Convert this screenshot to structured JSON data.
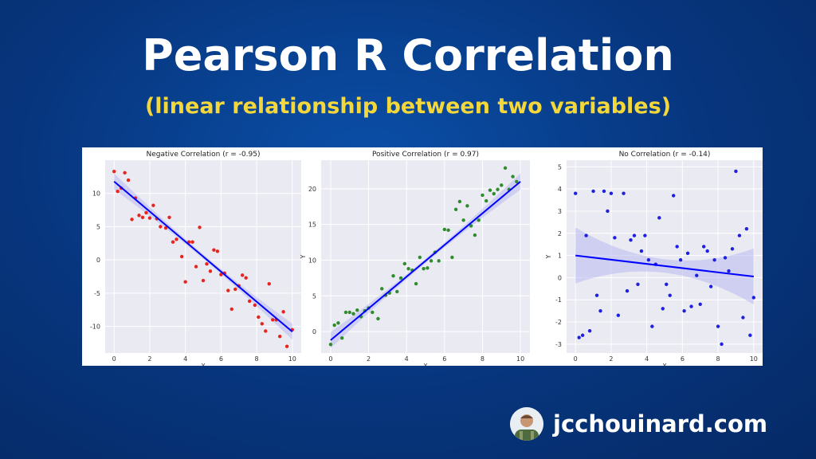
{
  "header": {
    "title": "Pearson R Correlation",
    "subtitle": "(linear relationship between two variables)"
  },
  "brand": {
    "site": "jcchouinard.com",
    "avatar_icon": "author-avatar-icon"
  },
  "colors": {
    "background": "#07357d",
    "title": "#ffffff",
    "subtitle": "#f4d73b",
    "plot_bg": "#eaeaf2",
    "fit_line": "#0000ff",
    "ci_band": "#b8b8f0"
  },
  "chart_data": [
    {
      "type": "scatter",
      "title": "Negative Correlation (r = -0.95)",
      "xlabel": "X",
      "ylabel": "",
      "xlim": [
        -0.5,
        10.5
      ],
      "ylim": [
        -14,
        15
      ],
      "xticks": [
        0,
        2,
        4,
        6,
        8,
        10
      ],
      "yticks": [
        -10,
        -5,
        0,
        5,
        10
      ],
      "grid": true,
      "point_color": "#e8241e",
      "fit": {
        "x0": 0,
        "y0": 11.8,
        "x1": 10,
        "y1": -10.8
      },
      "points": [
        [
          0,
          13.3
        ],
        [
          0.2,
          10.3
        ],
        [
          0.4,
          10.8
        ],
        [
          0.6,
          13.1
        ],
        [
          0.8,
          12.0
        ],
        [
          1.0,
          6.1
        ],
        [
          1.2,
          9.3
        ],
        [
          1.4,
          6.7
        ],
        [
          1.6,
          6.4
        ],
        [
          1.8,
          7.1
        ],
        [
          2.0,
          6.3
        ],
        [
          2.2,
          8.2
        ],
        [
          2.4,
          6.2
        ],
        [
          2.6,
          5.0
        ],
        [
          2.9,
          4.8
        ],
        [
          3.1,
          6.4
        ],
        [
          3.3,
          2.7
        ],
        [
          3.5,
          3.1
        ],
        [
          3.8,
          0.5
        ],
        [
          4.0,
          -3.3
        ],
        [
          4.2,
          2.7
        ],
        [
          4.4,
          2.7
        ],
        [
          4.6,
          -1.0
        ],
        [
          4.8,
          4.9
        ],
        [
          5.0,
          -3.1
        ],
        [
          5.2,
          -0.6
        ],
        [
          5.4,
          -1.7
        ],
        [
          5.6,
          1.5
        ],
        [
          5.8,
          1.3
        ],
        [
          6.0,
          -2.2
        ],
        [
          6.2,
          -2.0
        ],
        [
          6.4,
          -4.6
        ],
        [
          6.6,
          -7.4
        ],
        [
          6.8,
          -4.4
        ],
        [
          7.0,
          -3.9
        ],
        [
          7.2,
          -2.3
        ],
        [
          7.4,
          -2.7
        ],
        [
          7.6,
          -6.2
        ],
        [
          7.9,
          -6.8
        ],
        [
          8.1,
          -8.6
        ],
        [
          8.3,
          -9.6
        ],
        [
          8.5,
          -10.7
        ],
        [
          8.7,
          -3.6
        ],
        [
          8.9,
          -9.0
        ],
        [
          9.1,
          -9.0
        ],
        [
          9.3,
          -11.5
        ],
        [
          9.5,
          -7.8
        ],
        [
          9.7,
          -13.0
        ],
        [
          10.0,
          -10.5
        ]
      ]
    },
    {
      "type": "scatter",
      "title": "Positive Correlation (r = 0.97)",
      "xlabel": "X",
      "ylabel": "Y",
      "xlim": [
        -0.5,
        10.5
      ],
      "ylim": [
        -3,
        24
      ],
      "xticks": [
        0,
        2,
        4,
        6,
        8,
        10
      ],
      "yticks": [
        0,
        5,
        10,
        15,
        20
      ],
      "grid": true,
      "point_color": "#2e8b2e",
      "fit": {
        "x0": 0,
        "y0": -1.2,
        "x1": 10,
        "y1": 21.0
      },
      "points": [
        [
          0,
          -1.8
        ],
        [
          0.2,
          0.9
        ],
        [
          0.4,
          1.2
        ],
        [
          0.6,
          -0.9
        ],
        [
          0.8,
          2.7
        ],
        [
          1.0,
          2.7
        ],
        [
          1.2,
          2.5
        ],
        [
          1.4,
          3.0
        ],
        [
          1.6,
          2.1
        ],
        [
          1.8,
          2.9
        ],
        [
          2.0,
          3.3
        ],
        [
          2.2,
          2.7
        ],
        [
          2.5,
          1.8
        ],
        [
          2.7,
          6.0
        ],
        [
          2.9,
          5.1
        ],
        [
          3.1,
          5.4
        ],
        [
          3.3,
          7.8
        ],
        [
          3.5,
          5.6
        ],
        [
          3.7,
          7.5
        ],
        [
          3.9,
          9.5
        ],
        [
          4.1,
          8.8
        ],
        [
          4.3,
          8.6
        ],
        [
          4.5,
          6.7
        ],
        [
          4.7,
          10.4
        ],
        [
          4.9,
          8.8
        ],
        [
          5.1,
          8.9
        ],
        [
          5.3,
          9.9
        ],
        [
          5.5,
          11.1
        ],
        [
          5.7,
          9.9
        ],
        [
          6.0,
          14.3
        ],
        [
          6.2,
          14.2
        ],
        [
          6.4,
          10.4
        ],
        [
          6.6,
          17.1
        ],
        [
          6.8,
          18.2
        ],
        [
          7.0,
          15.6
        ],
        [
          7.2,
          17.6
        ],
        [
          7.4,
          14.8
        ],
        [
          7.6,
          13.5
        ],
        [
          7.8,
          15.6
        ],
        [
          8.0,
          19.1
        ],
        [
          8.2,
          18.3
        ],
        [
          8.4,
          19.8
        ],
        [
          8.6,
          19.3
        ],
        [
          8.8,
          19.9
        ],
        [
          9.0,
          20.5
        ],
        [
          9.2,
          22.9
        ],
        [
          9.4,
          19.9
        ],
        [
          9.6,
          21.7
        ],
        [
          9.8,
          21.0
        ]
      ]
    },
    {
      "type": "scatter",
      "title": "No Correlation (r = -0.14)",
      "xlabel": "X",
      "ylabel": "Y",
      "xlim": [
        -0.5,
        10.5
      ],
      "ylim": [
        -3.4,
        5.3
      ],
      "xticks": [
        0,
        2,
        4,
        6,
        8,
        10
      ],
      "yticks": [
        -3,
        -2,
        -1,
        0,
        1,
        2,
        3,
        4,
        5
      ],
      "grid": true,
      "point_color": "#1f1fe0",
      "fit": {
        "x0": 0,
        "y0": 1.0,
        "x1": 10,
        "y1": 0.05
      },
      "points": [
        [
          0,
          3.8
        ],
        [
          0.2,
          -2.7
        ],
        [
          0.4,
          -2.6
        ],
        [
          0.6,
          1.9
        ],
        [
          0.8,
          -2.4
        ],
        [
          1.0,
          3.9
        ],
        [
          1.2,
          -0.8
        ],
        [
          1.4,
          -1.5
        ],
        [
          1.6,
          3.9
        ],
        [
          1.8,
          3.0
        ],
        [
          2.0,
          3.8
        ],
        [
          2.2,
          1.8
        ],
        [
          2.4,
          -1.7
        ],
        [
          2.7,
          3.8
        ],
        [
          2.9,
          -0.6
        ],
        [
          3.1,
          1.7
        ],
        [
          3.3,
          1.9
        ],
        [
          3.5,
          -0.3
        ],
        [
          3.7,
          1.2
        ],
        [
          3.9,
          1.9
        ],
        [
          4.1,
          0.8
        ],
        [
          4.3,
          -2.2
        ],
        [
          4.5,
          0.6
        ],
        [
          4.7,
          2.7
        ],
        [
          4.9,
          -1.4
        ],
        [
          5.1,
          -0.3
        ],
        [
          5.3,
          -0.8
        ],
        [
          5.5,
          3.7
        ],
        [
          5.7,
          1.4
        ],
        [
          5.9,
          0.8
        ],
        [
          6.1,
          -1.5
        ],
        [
          6.3,
          1.1
        ],
        [
          6.5,
          -1.3
        ],
        [
          6.8,
          0.1
        ],
        [
          7.0,
          -1.2
        ],
        [
          7.2,
          1.4
        ],
        [
          7.4,
          1.2
        ],
        [
          7.6,
          -0.4
        ],
        [
          7.8,
          0.8
        ],
        [
          8.0,
          -2.2
        ],
        [
          8.2,
          -3.0
        ],
        [
          8.4,
          0.9
        ],
        [
          8.6,
          0.3
        ],
        [
          8.8,
          1.3
        ],
        [
          9.0,
          4.8
        ],
        [
          9.2,
          1.9
        ],
        [
          9.4,
          -1.8
        ],
        [
          9.6,
          2.2
        ],
        [
          9.8,
          -2.6
        ],
        [
          10.0,
          -0.9
        ]
      ]
    }
  ]
}
